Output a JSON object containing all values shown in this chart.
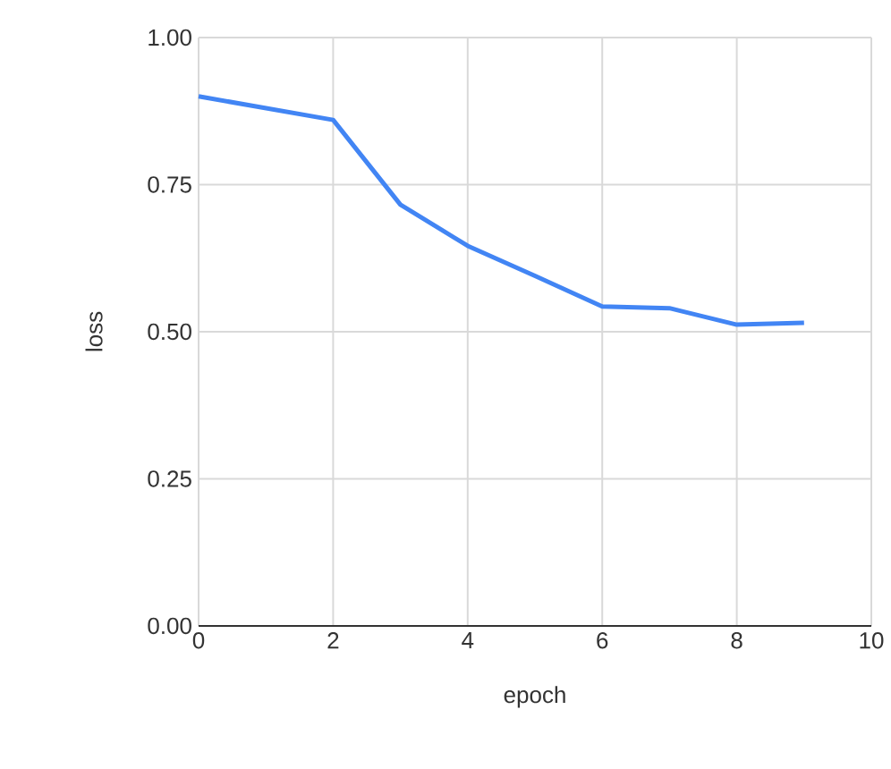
{
  "chart_data": {
    "type": "line",
    "xlabel": "epoch",
    "ylabel": "loss",
    "x": [
      0,
      1,
      2,
      3,
      4,
      5,
      6,
      7,
      8,
      9
    ],
    "series": [
      {
        "color": "#4285f4",
        "values": [
          0.9,
          0.88,
          0.86,
          0.716,
          0.646,
          0.595,
          0.543,
          0.54,
          0.512,
          0.515
        ]
      }
    ],
    "xlim": [
      0,
      10
    ],
    "xticks": [
      0,
      2,
      4,
      6,
      8,
      10
    ],
    "ylim": [
      0,
      1
    ],
    "yticks": [
      {
        "value": 0,
        "label": "0.00"
      },
      {
        "value": 0.25,
        "label": "0.25"
      },
      {
        "value": 0.5,
        "label": "0.50"
      },
      {
        "value": 0.75,
        "label": "0.75"
      },
      {
        "value": 1,
        "label": "1.00"
      }
    ],
    "grid": true,
    "marker": "none",
    "line_style": "solid"
  }
}
